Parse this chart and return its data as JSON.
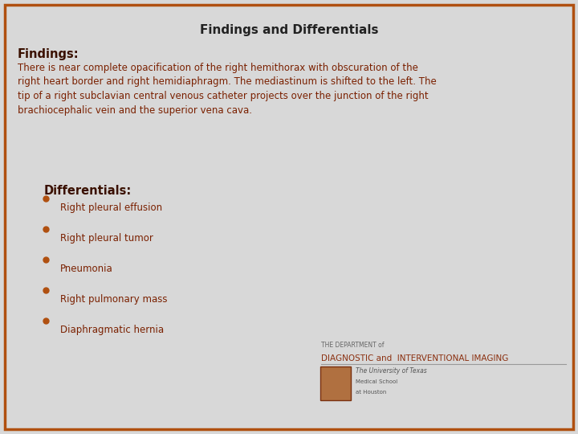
{
  "title": "Findings and Differentials",
  "title_fontsize": 11,
  "title_color": "#222222",
  "background_color": "#d8d8d8",
  "border_color": "#b05010",
  "findings_header": "Findings:",
  "findings_header_fontsize": 10.5,
  "findings_header_color": "#3a1000",
  "findings_text": "There is near complete opacification of the right hemithorax with obscuration of the\nright heart border and right hemidiaphragm. The mediastinum is shifted to the left. The\ntip of a right subclavian central venous catheter projects over the junction of the right\nbrachiocephalic vein and the superior vena cava.",
  "findings_text_fontsize": 8.5,
  "findings_text_color": "#7a2000",
  "differentials_header": "Differentials:",
  "differentials_header_fontsize": 10.5,
  "differentials_header_color": "#3a1000",
  "bullet_color": "#b05010",
  "bullet_items": [
    "Right pleural effusion",
    "Right pleural tumor",
    "Pneumonia",
    "Right pulmonary mass",
    "Diaphragmatic hernia"
  ],
  "bullet_fontsize": 8.5,
  "bullet_text_color": "#7a2000",
  "logo_dept_text": "THE DEPARTMENT of",
  "logo_diag_text": "DIAGNOSTIC and  INTERVENTIONAL IMAGING",
  "logo_univ_text": "The University of Texas",
  "logo_med_text": "Medical School",
  "logo_houston_text": "at Houston"
}
